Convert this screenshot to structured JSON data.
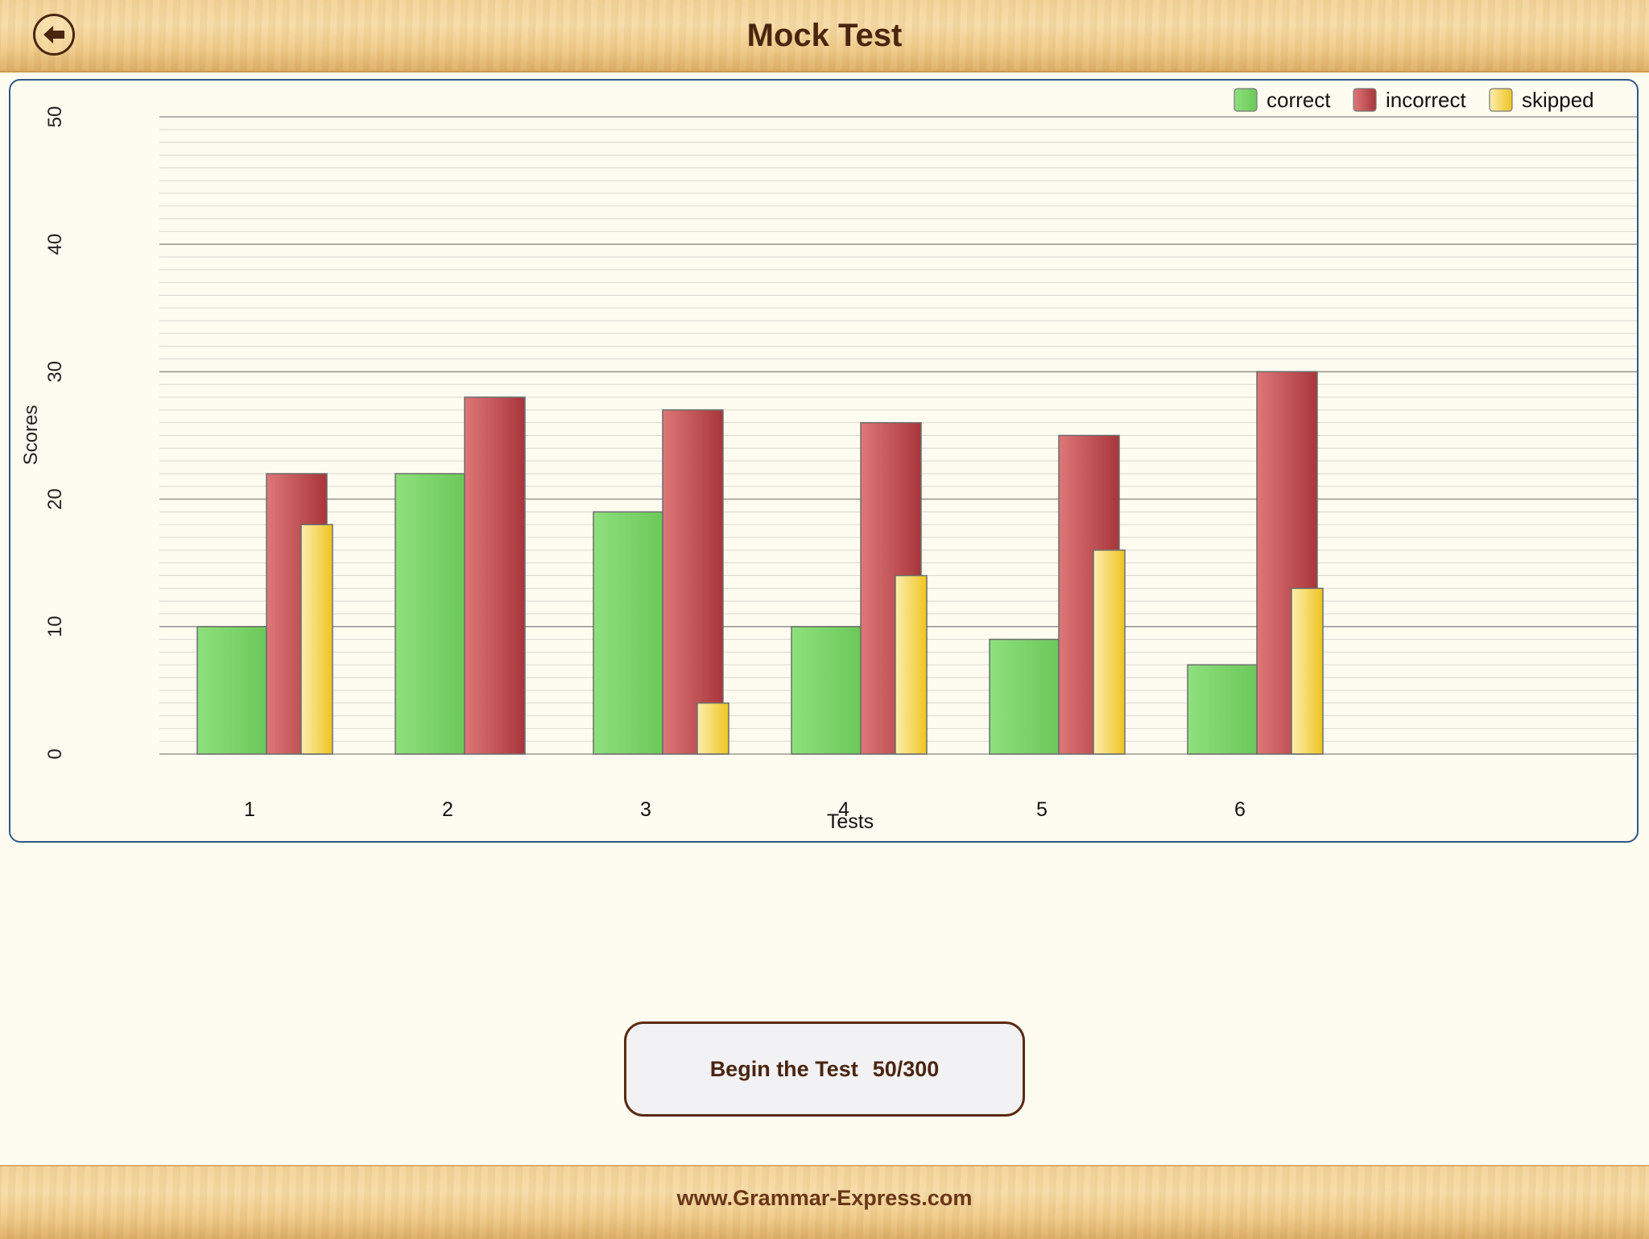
{
  "header": {
    "title": "Mock Test",
    "back_icon": "back-arrow-icon"
  },
  "chart_data": {
    "type": "bar",
    "categories": [
      "1",
      "2",
      "3",
      "4",
      "5",
      "6"
    ],
    "series": [
      {
        "name": "correct",
        "values": [
          10,
          22,
          19,
          10,
          9,
          7
        ],
        "color": "#6fcf5f"
      },
      {
        "name": "incorrect",
        "values": [
          22,
          28,
          27,
          26,
          25,
          30
        ],
        "color": "#b8474a"
      },
      {
        "name": "skipped",
        "values": [
          18,
          0,
          4,
          14,
          16,
          13
        ],
        "color": "#f2cf3a"
      }
    ],
    "ylim": [
      0,
      50
    ],
    "yticks": [
      "0",
      "10",
      "20",
      "30",
      "40",
      "50"
    ],
    "xlabel": "Tests",
    "ylabel": "Scores",
    "legend": "top-right",
    "grid": true
  },
  "action": {
    "begin_label": "Begin the Test",
    "progress": "50/300"
  },
  "footer": {
    "url": "www.Grammar-Express.com"
  }
}
